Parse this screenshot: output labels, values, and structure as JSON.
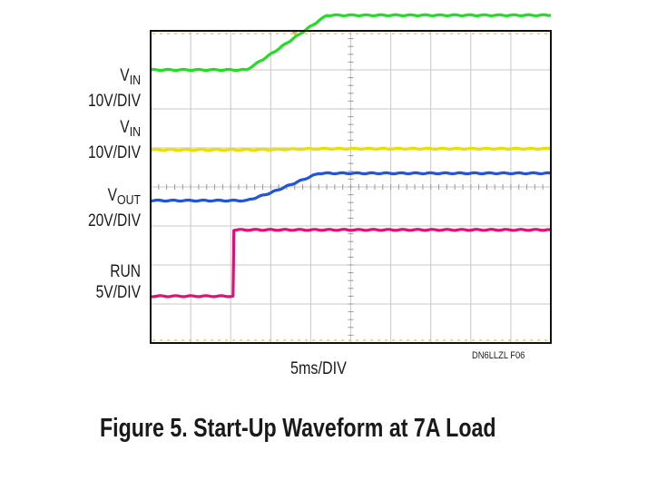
{
  "caption": "Figure 5. Start-Up Waveform at 7A Load",
  "chart_data": {
    "type": "line",
    "x_unit": "ms",
    "xlim": [
      0,
      50
    ],
    "time_division": "5ms/DIV",
    "figure_id": "DN6LLZL F06",
    "channels": [
      {
        "label": "V",
        "label_sub": "IN",
        "scale": "10V/DIV",
        "color": "#22dd22",
        "ground_div": 1.0,
        "volts_per_div": 10,
        "x": [
          0,
          12,
          15,
          22,
          50
        ],
        "y": [
          0,
          0,
          4,
          14,
          14
        ]
      },
      {
        "label": "V",
        "label_sub": "IN",
        "scale": "10V/DIV",
        "color": "#e8e000",
        "ground_div": 3.05,
        "volts_per_div": 10,
        "x": [
          0,
          12,
          22,
          50
        ],
        "y": [
          0,
          0,
          0.3,
          0.3
        ]
      },
      {
        "label": "V",
        "label_sub": "OUT",
        "scale": "20V/DIV",
        "color": "#2255dd",
        "ground_div": 4.35,
        "volts_per_div": 20,
        "x": [
          0,
          12,
          15,
          21,
          50
        ],
        "y": [
          0,
          0,
          4,
          14,
          14
        ]
      },
      {
        "label": "RUN",
        "label_sub": "",
        "scale": "5V/DIV",
        "color": "#e0107a",
        "ground_div": 6.8,
        "volts_per_div": 5,
        "x": [
          0,
          10.3,
          10.4,
          50
        ],
        "y": [
          0,
          0,
          8.5,
          8.5
        ]
      }
    ]
  }
}
